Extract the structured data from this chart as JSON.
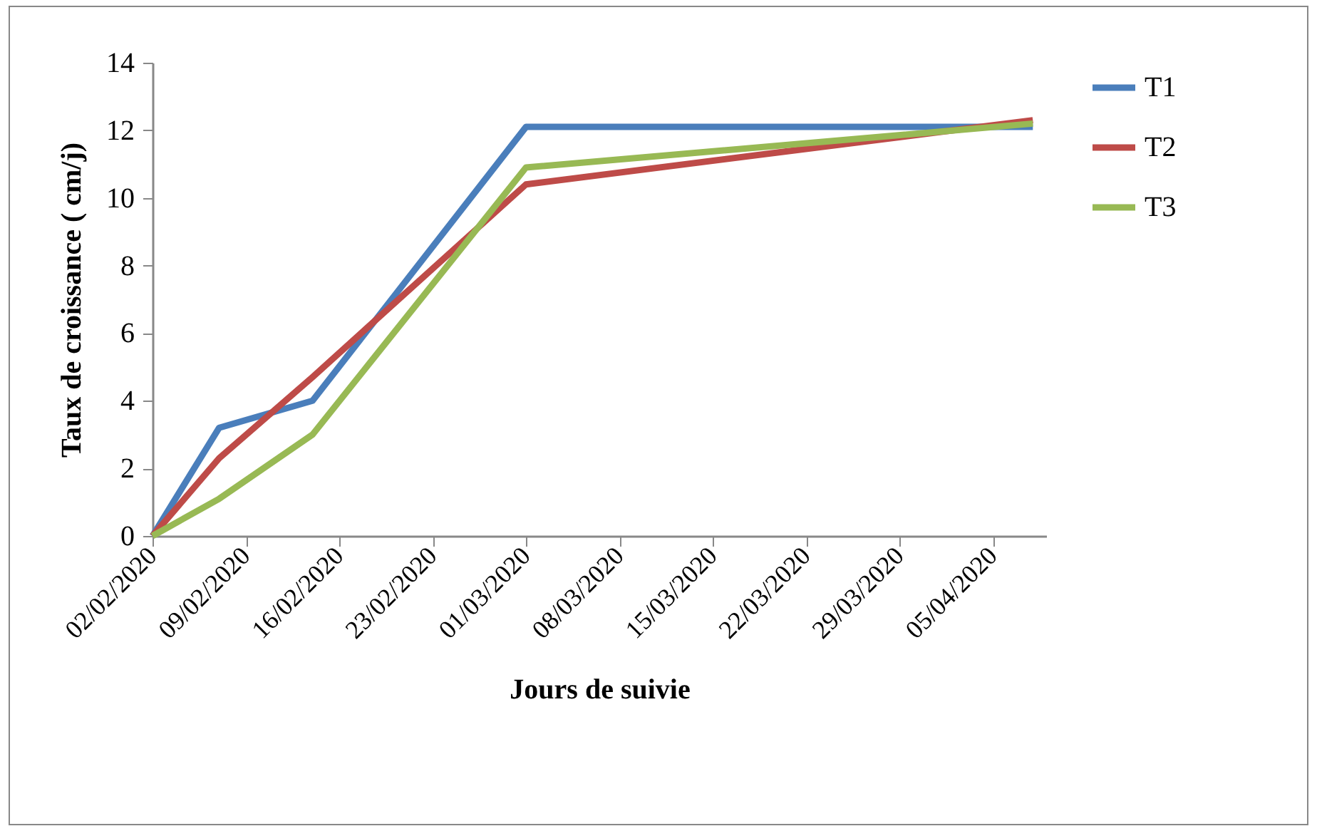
{
  "chart_data": {
    "type": "line",
    "xlabel": "Jours de suivie",
    "ylabel": "Taux de croissance ( cm/j)",
    "x": [
      "2020-02-02",
      "2020-02-07",
      "2020-02-14",
      "2020-03-01",
      "2020-04-08"
    ],
    "series": [
      {
        "name": "T1",
        "color": "#4a7ebb",
        "values": [
          0,
          3.2,
          4.0,
          12.1,
          12.1
        ]
      },
      {
        "name": "T2",
        "color": "#be4b48",
        "values": [
          0,
          2.3,
          4.7,
          10.4,
          12.3
        ]
      },
      {
        "name": "T3",
        "color": "#98b954",
        "values": [
          0,
          1.1,
          3.0,
          10.9,
          12.2
        ]
      }
    ],
    "xlim": [
      "2020-02-02",
      "2020-04-09"
    ],
    "xticks": [
      {
        "value": "2020-02-02",
        "label": "02/02/2020"
      },
      {
        "value": "2020-02-09",
        "label": "09/02/2020"
      },
      {
        "value": "2020-02-16",
        "label": "16/02/2020"
      },
      {
        "value": "2020-02-23",
        "label": "23/02/2020"
      },
      {
        "value": "2020-03-01",
        "label": "01/03/2020"
      },
      {
        "value": "2020-03-08",
        "label": "08/03/2020"
      },
      {
        "value": "2020-03-15",
        "label": "15/03/2020"
      },
      {
        "value": "2020-03-22",
        "label": "22/03/2020"
      },
      {
        "value": "2020-03-29",
        "label": "29/03/2020"
      },
      {
        "value": "2020-04-05",
        "label": "05/04/2020"
      }
    ],
    "ylim": [
      0,
      14
    ],
    "yticks": [
      0,
      2,
      4,
      6,
      8,
      10,
      12,
      14
    ],
    "grid": false,
    "legend": "right",
    "marker": "none",
    "line_style": "solid"
  }
}
